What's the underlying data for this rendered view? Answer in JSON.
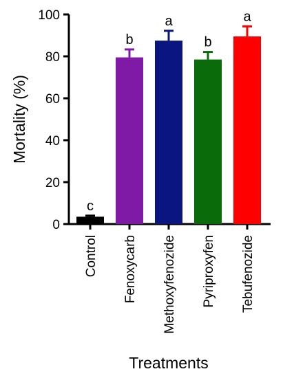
{
  "chart_data": {
    "type": "bar",
    "xlabel": "Treatments",
    "ylabel": "Mortality (%)",
    "ylim": [
      0,
      100
    ],
    "yticks": [
      0,
      20,
      40,
      60,
      80,
      100
    ],
    "grid": false,
    "categories": [
      "Control",
      "Fenoxycarb",
      "Methoxyfenozide",
      "Pyriproxyfen",
      "Tebufenozide"
    ],
    "values": [
      3.5,
      79.5,
      87.5,
      78.5,
      89.5
    ],
    "errors": [
      0.5,
      3.8,
      4.7,
      3.6,
      4.8
    ],
    "significance": [
      "c",
      "b",
      "a",
      "b",
      "a"
    ],
    "colors": [
      "#000000",
      "#7f1aa6",
      "#0a1580",
      "#0a6b0a",
      "#ff0000"
    ]
  }
}
